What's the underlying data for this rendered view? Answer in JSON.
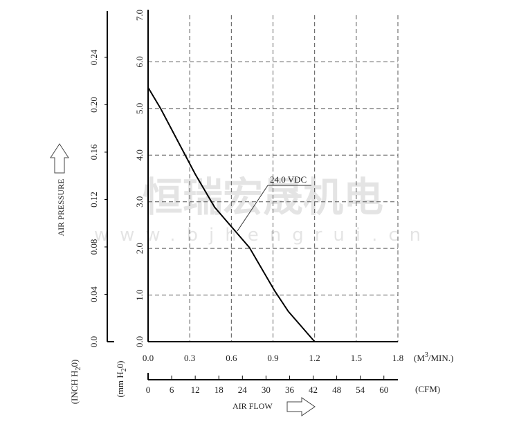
{
  "chart_data": {
    "type": "line",
    "xlabel": "AIR FLOW",
    "ylabel": "AIR PRESSURE",
    "x_unit": "(M3/MIN.)",
    "x_unit_parts": {
      "base": "(M",
      "sup": "3",
      "rest": "/MIN.)"
    },
    "x2_unit": "(CFM)",
    "y_unit": "(mm H2O)",
    "y_unit_parts": {
      "base": "(mm H",
      "sub": "2",
      "rest": "0)"
    },
    "y2_unit": "(INCH H2O)",
    "y2_unit_parts": {
      "base": "(INCH H",
      "sub": "2",
      "rest": "0)"
    },
    "xlim": [
      0,
      1.8
    ],
    "ylim": [
      0,
      7.0
    ],
    "x_ticks": [
      "0.0",
      "0.3",
      "0.6",
      "0.9",
      "1.2",
      "1.5",
      "1.8"
    ],
    "y_ticks": [
      "0.0",
      "1.0",
      "2.0",
      "3.0",
      "4.0",
      "5.0",
      "6.0",
      "7.0"
    ],
    "x2_ticks": [
      "0",
      "6",
      "12",
      "18",
      "24",
      "30",
      "36",
      "42",
      "48",
      "54",
      "60"
    ],
    "y2_ticks": [
      "0.0",
      "0.04",
      "0.08",
      "0.12",
      "0.16",
      "0.20",
      "0.24"
    ],
    "grid": true,
    "series": [
      {
        "name": "24.0 VDC",
        "x": [
          0,
          0.09,
          0.34,
          0.48,
          0.73,
          0.91,
          1.01,
          1.2
        ],
        "y": [
          5.45,
          5.0,
          3.59,
          2.88,
          2.02,
          1.1,
          0.65,
          0
        ]
      }
    ],
    "annotation": "24.0 VDC",
    "watermark": "恒瑞宏晟机电 www.bjhengrui.cn"
  }
}
